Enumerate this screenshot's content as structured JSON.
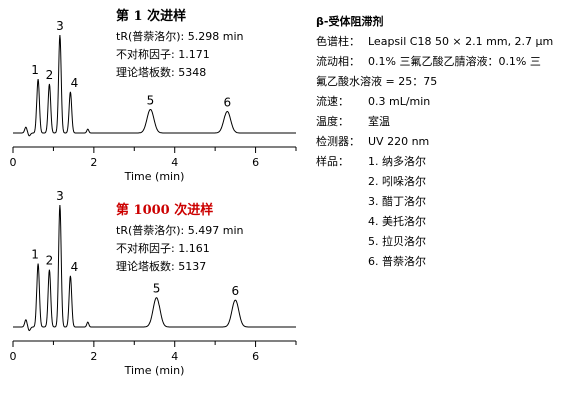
{
  "chart_data": [
    {
      "type": "line",
      "title": "第 1 次进样",
      "title_color": "#000000",
      "xlabel": "Time (min)",
      "ylabel": "",
      "xlim": [
        0,
        7
      ],
      "xticks": [
        0,
        2,
        4,
        6
      ],
      "grid": false,
      "stats": [
        "tR(普萘洛尔): 5.298 min",
        "不对称因子: 1.171",
        "理论塔板数: 5348"
      ],
      "peaks": [
        {
          "label": "1",
          "rt": 0.62,
          "height": 0.55
        },
        {
          "label": "2",
          "rt": 0.9,
          "height": 0.5
        },
        {
          "label": "3",
          "rt": 1.16,
          "height": 1.0
        },
        {
          "label": "4",
          "rt": 1.42,
          "height": 0.42
        },
        {
          "label": "5",
          "rt": 3.4,
          "height": 0.24
        },
        {
          "label": "6",
          "rt": 5.3,
          "height": 0.22
        }
      ]
    },
    {
      "type": "line",
      "title": "第 1000 次进样",
      "title_color": "#cc0000",
      "xlabel": "Time (min)",
      "ylabel": "",
      "xlim": [
        0,
        7
      ],
      "xticks": [
        0,
        2,
        4,
        6
      ],
      "grid": false,
      "stats": [
        "tR(普萘洛尔): 5.497 min",
        "不对称因子: 1.161",
        "理论塔板数: 5137"
      ],
      "peaks": [
        {
          "label": "1",
          "rt": 0.62,
          "height": 0.52
        },
        {
          "label": "2",
          "rt": 0.9,
          "height": 0.47
        },
        {
          "label": "3",
          "rt": 1.16,
          "height": 1.0
        },
        {
          "label": "4",
          "rt": 1.42,
          "height": 0.42
        },
        {
          "label": "5",
          "rt": 3.55,
          "height": 0.24
        },
        {
          "label": "6",
          "rt": 5.5,
          "height": 0.22
        }
      ]
    }
  ],
  "conditions": {
    "title": "β-受体阻滞剂",
    "column_label": "色谱柱：",
    "column_value": "Leapsil C18 50 × 2.1 mm, 2.7 μm",
    "mobile_label": "流动相：",
    "mobile_value": "0.1% 三氟乙酸乙腈溶液：0.1% 三",
    "mobile_value_cont": "氟乙酸水溶液 = 25：75",
    "flow_label": "流速：",
    "flow_value": "0.3 mL/min",
    "temp_label": "温度：",
    "temp_value": "室温",
    "detector_label": "检测器：",
    "detector_value": "UV 220 nm",
    "sample_label": "样品：",
    "samples": [
      "1. 纳多洛尔",
      "2. 吲哚洛尔",
      "3. 醋丁洛尔",
      "4. 美托洛尔",
      "5. 拉贝洛尔",
      "6. 普萘洛尔"
    ]
  }
}
